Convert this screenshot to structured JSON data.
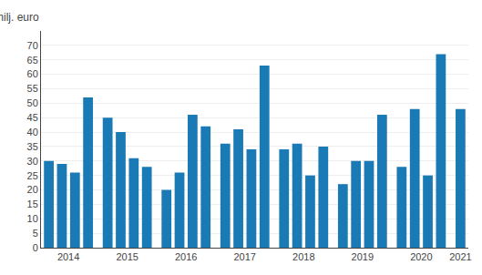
{
  "chart_data": {
    "type": "bar",
    "ylabel": "milj. euro",
    "categories": [
      "2014",
      "2014",
      "2014",
      "2014",
      "2015",
      "2015",
      "2015",
      "2015",
      "2016",
      "2016",
      "2016",
      "2016",
      "2017",
      "2017",
      "2017",
      "2017",
      "2018",
      "2018",
      "2018",
      "2018",
      "2019",
      "2019",
      "2019",
      "2019",
      "2020",
      "2020",
      "2020",
      "2020",
      "2021"
    ],
    "values": [
      30,
      29,
      26,
      52,
      45,
      40,
      31,
      28,
      20,
      26,
      46,
      42,
      36,
      41,
      34,
      63,
      34,
      36,
      25,
      35,
      22,
      30,
      30,
      46,
      28,
      48,
      25,
      67,
      48
    ],
    "color": "#1a7ab5",
    "ylim": [
      0,
      75
    ],
    "yticks": [
      0,
      5,
      10,
      15,
      20,
      25,
      30,
      35,
      40,
      45,
      50,
      55,
      60,
      65,
      70
    ],
    "grid": true
  }
}
